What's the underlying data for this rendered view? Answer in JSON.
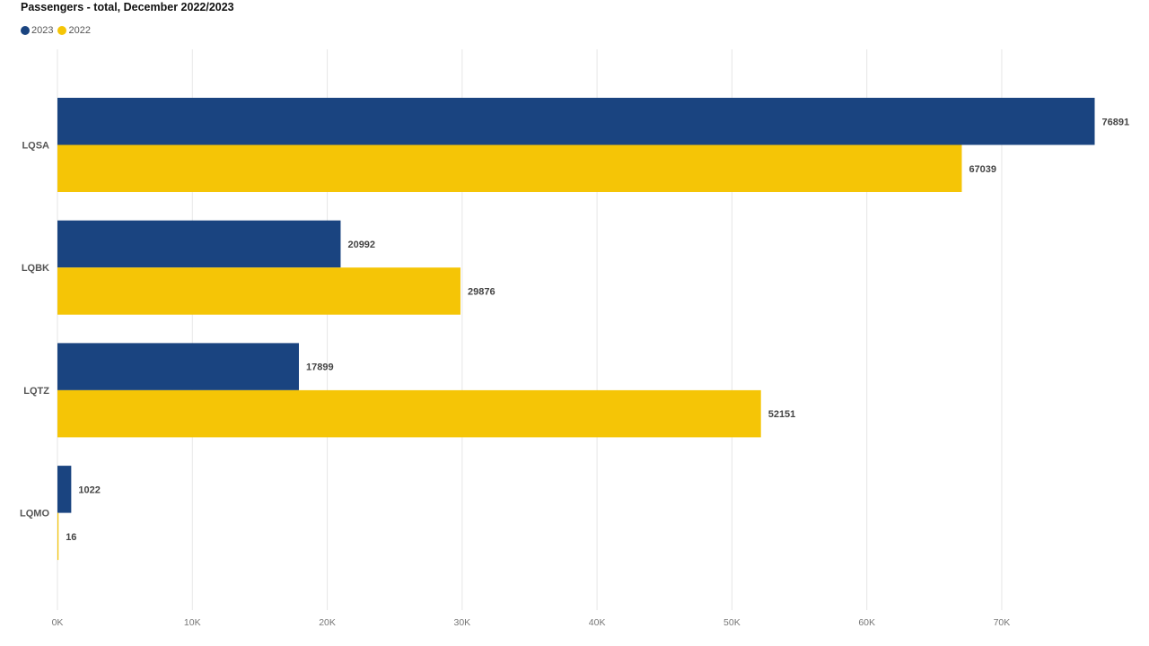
{
  "chart_data": {
    "type": "bar",
    "orientation": "horizontal",
    "title": "Passengers - total, December 2022/2023",
    "categories": [
      "LQSA",
      "LQBK",
      "LQTZ",
      "LQMO"
    ],
    "series": [
      {
        "name": "2023",
        "color": "#1a4480",
        "values": [
          76891,
          20992,
          17899,
          1022
        ]
      },
      {
        "name": "2022",
        "color": "#f5c506",
        "values": [
          67039,
          29876,
          52151,
          16
        ]
      }
    ],
    "xlim": [
      0,
      77000
    ],
    "x_ticks": [
      0,
      10000,
      20000,
      30000,
      40000,
      50000,
      60000,
      70000
    ],
    "x_tick_labels": [
      "0K",
      "10K",
      "20K",
      "30K",
      "40K",
      "50K",
      "60K",
      "70K"
    ],
    "xlabel": "",
    "ylabel": "",
    "grid": true,
    "legend_position": "top-left",
    "data_labels": true
  }
}
